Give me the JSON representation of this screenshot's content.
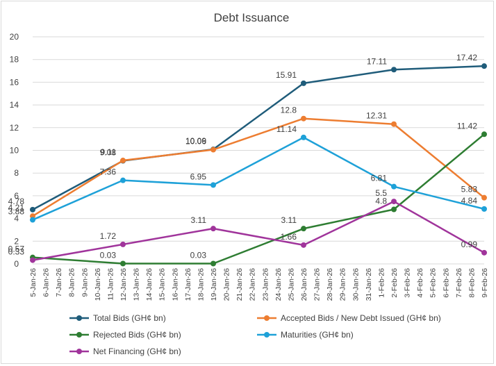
{
  "chart_data": {
    "type": "line",
    "title": "Debt Issuance",
    "xlabel": "",
    "ylabel": "",
    "ylim": [
      0,
      20
    ],
    "ytick_step": 2,
    "yticks": [
      "0",
      "2",
      "4",
      "6",
      "8",
      "10",
      "12",
      "14",
      "16",
      "18",
      "20"
    ],
    "grid": "horizontal",
    "legend_position": "bottom",
    "x": [
      "5-Jan-26",
      "6-Jan-26",
      "7-Jan-26",
      "8-Jan-26",
      "9-Jan-26",
      "10-Jan-26",
      "11-Jan-26",
      "12-Jan-26",
      "13-Jan-26",
      "14-Jan-26",
      "15-Jan-26",
      "16-Jan-26",
      "17-Jan-26",
      "18-Jan-26",
      "19-Jan-26",
      "20-Jan-26",
      "21-Jan-26",
      "22-Jan-26",
      "23-Jan-26",
      "24-Jan-26",
      "25-Jan-26",
      "26-Jan-26",
      "27-Jan-26",
      "28-Jan-26",
      "29-Jan-26",
      "30-Jan-26",
      "31-Jan-26",
      "1-Feb-26",
      "2-Feb-26",
      "3-Feb-26",
      "4-Feb-26",
      "5-Feb-26",
      "6-Feb-26",
      "7-Feb-26",
      "8-Feb-26",
      "9-Feb-26"
    ],
    "series": [
      {
        "name": "Total Bids (GH¢ bn)",
        "color": "#1f5c7a",
        "points": [
          [
            "5-Jan-26",
            4.78
          ],
          [
            "12-Jan-26",
            9.08
          ],
          [
            "19-Jan-26",
            10.09
          ],
          [
            "26-Jan-26",
            15.91
          ],
          [
            "2-Feb-26",
            17.11
          ],
          [
            "9-Feb-26",
            17.42
          ]
        ],
        "labels": [
          "4.78",
          "9.08",
          "10.09",
          "15.91",
          "17.11",
          "17.42"
        ]
      },
      {
        "name": "Accepted Bids / New Debt Issued (GH¢ bn)",
        "color": "#ed7d31",
        "points": [
          [
            "5-Jan-26",
            4.21
          ],
          [
            "12-Jan-26",
            9.11
          ],
          [
            "19-Jan-26",
            10.06
          ],
          [
            "26-Jan-26",
            12.8
          ],
          [
            "2-Feb-26",
            12.31
          ],
          [
            "9-Feb-26",
            5.83
          ]
        ],
        "labels": [
          "4.21",
          "9.11",
          "10.06",
          "12.8",
          "12.31",
          "5.83"
        ]
      },
      {
        "name": "Rejected Bids (GH¢ bn)",
        "color": "#2e7d32",
        "points": [
          [
            "5-Jan-26",
            0.57
          ],
          [
            "12-Jan-26",
            0.03
          ],
          [
            "19-Jan-26",
            0.03
          ],
          [
            "26-Jan-26",
            3.11
          ],
          [
            "2-Feb-26",
            4.8
          ],
          [
            "9-Feb-26",
            11.42
          ]
        ],
        "labels": [
          "0.57",
          "0.03",
          "0.03",
          "3.11",
          "4.8",
          "11.42"
        ]
      },
      {
        "name": "Maturities (GH¢ bn)",
        "color": "#1ea1d8",
        "points": [
          [
            "5-Jan-26",
            3.88
          ],
          [
            "12-Jan-26",
            7.36
          ],
          [
            "19-Jan-26",
            6.95
          ],
          [
            "26-Jan-26",
            11.14
          ],
          [
            "2-Feb-26",
            6.81
          ],
          [
            "9-Feb-26",
            4.84
          ]
        ],
        "labels": [
          "3.88",
          "7.36",
          "6.95",
          "11.14",
          "6.81",
          "4.84"
        ]
      },
      {
        "name": "Net Financing (GH¢ bn)",
        "color": "#a0349b",
        "points": [
          [
            "5-Jan-26",
            0.33
          ],
          [
            "12-Jan-26",
            1.72
          ],
          [
            "19-Jan-26",
            3.11
          ],
          [
            "26-Jan-26",
            1.66
          ],
          [
            "2-Feb-26",
            5.5
          ],
          [
            "9-Feb-26",
            0.99
          ]
        ],
        "labels": [
          "0.33",
          "1.72",
          "3.11",
          "1.66",
          "5.5",
          "0.99"
        ]
      }
    ]
  }
}
